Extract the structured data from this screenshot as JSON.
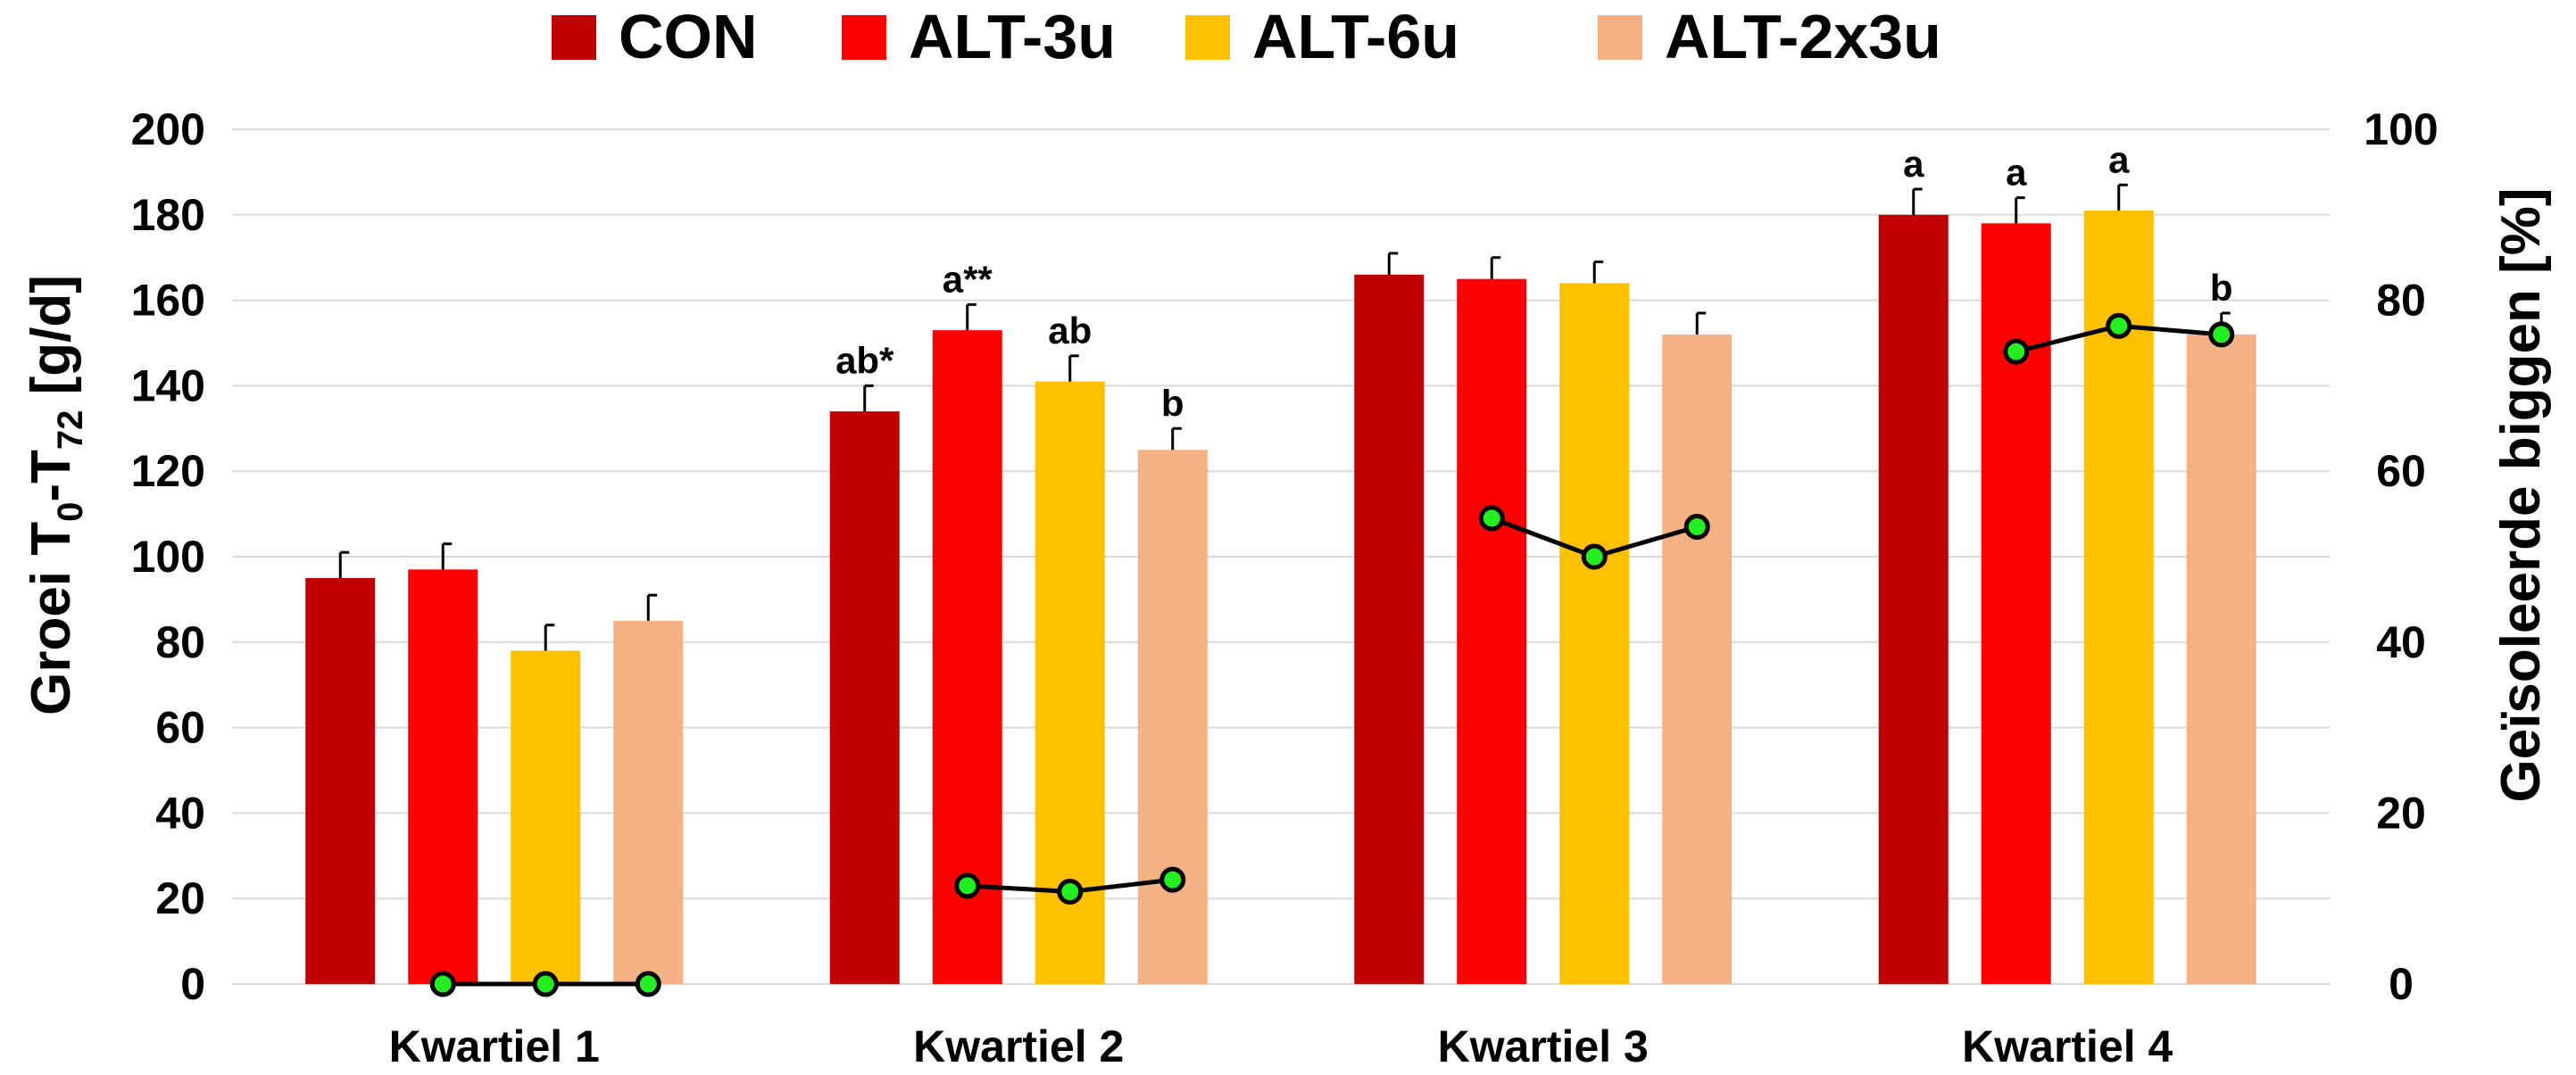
{
  "chart_data": {
    "type": "bar",
    "categories": [
      "Kwartiel 1",
      "Kwartiel 2",
      "Kwartiel 3",
      "Kwartiel 4"
    ],
    "series": [
      {
        "name": "CON",
        "color": "#C00000",
        "values": [
          95,
          134,
          166,
          180
        ],
        "errors": [
          6,
          6,
          5,
          6
        ],
        "labels": [
          "",
          "ab*",
          "",
          "a"
        ]
      },
      {
        "name": "ALT-3u",
        "color": "#FF0000",
        "values": [
          97,
          153,
          165,
          178
        ],
        "errors": [
          6,
          6,
          5,
          6
        ],
        "labels": [
          "",
          "a**",
          "",
          "a"
        ]
      },
      {
        "name": "ALT-6u",
        "color": "#FFC000",
        "values": [
          78,
          141,
          164,
          181
        ],
        "errors": [
          6,
          6,
          5,
          6
        ],
        "labels": [
          "",
          "ab",
          "",
          "a"
        ]
      },
      {
        "name": "ALT-2x3u",
        "color": "#F4B183",
        "values": [
          85,
          125,
          152,
          152
        ],
        "errors": [
          6,
          5,
          5,
          5
        ],
        "labels": [
          "",
          "b",
          "",
          "b"
        ]
      }
    ],
    "line": {
      "axis": "right",
      "color": "#000000",
      "marker_color": "#22EE22",
      "groups": [
        {
          "category": "Kwartiel 1",
          "series_index": [
            1,
            2,
            3
          ],
          "values": [
            0,
            0,
            0
          ]
        },
        {
          "category": "Kwartiel 2",
          "series_index": [
            1,
            2,
            3
          ],
          "values": [
            11.5,
            10.8,
            12.2
          ]
        },
        {
          "category": "Kwartiel 3",
          "series_index": [
            1,
            2,
            3
          ],
          "values": [
            54.5,
            50,
            53.5
          ]
        },
        {
          "category": "Kwartiel 4",
          "series_index": [
            1,
            2,
            3
          ],
          "values": [
            74,
            77,
            76
          ]
        }
      ]
    },
    "ylabel_parts": [
      "Groei T",
      "0",
      "-T",
      "72",
      " [g/d]"
    ],
    "y2label": "Geïsoleerde biggen [%]",
    "ylim": [
      0,
      200
    ],
    "y2lim": [
      0,
      100
    ],
    "yticks": [
      "0",
      "20",
      "40",
      "60",
      "80",
      "100",
      "120",
      "140",
      "160",
      "180",
      "200"
    ],
    "y2ticks": [
      "0",
      "20",
      "40",
      "60",
      "80",
      "100"
    ],
    "legend_position": "top",
    "grid": true
  }
}
